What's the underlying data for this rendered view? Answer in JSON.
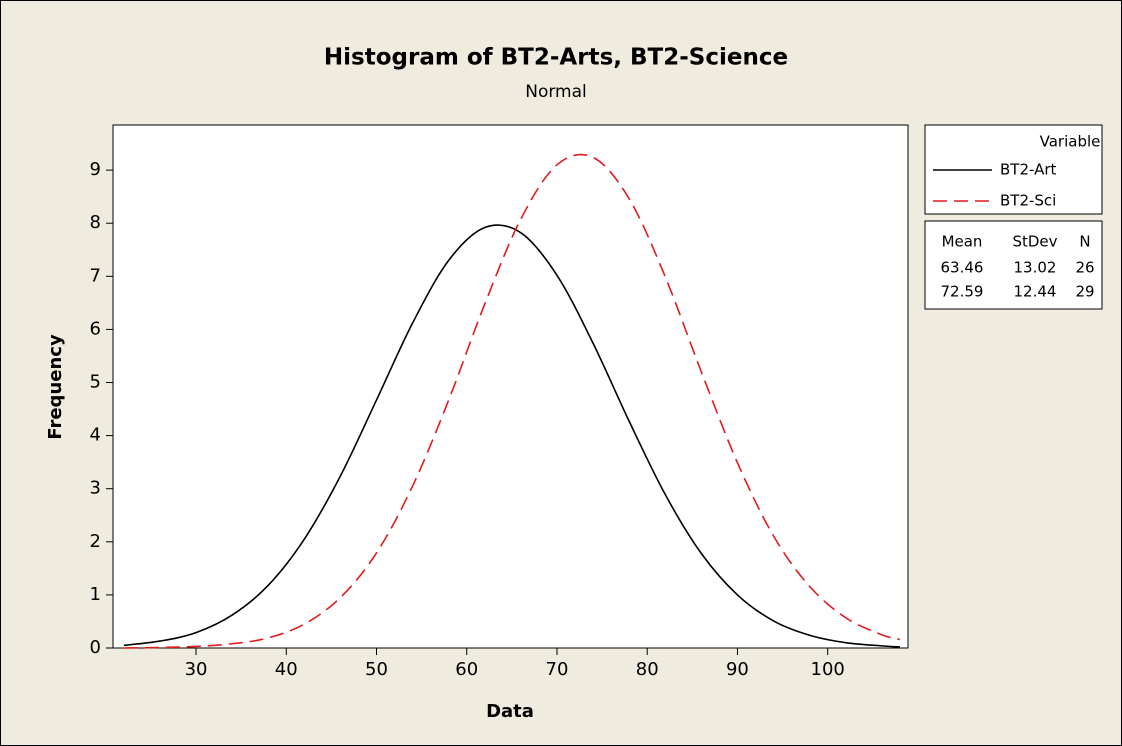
{
  "chart_data": {
    "type": "line",
    "title": "Histogram of BT2-Arts, BT2-Science",
    "subtitle": "Normal",
    "x_label": "Data",
    "y_label": "Frequency",
    "x": [
      22,
      26,
      30,
      34,
      38,
      42,
      46,
      50,
      54,
      58,
      62,
      66,
      70,
      74,
      78,
      82,
      86,
      90,
      94,
      98,
      102,
      106,
      108
    ],
    "series": [
      {
        "name": "BT2-Art",
        "color": "#000000",
        "dash": "solid",
        "values": [
          0.05,
          0.13,
          0.29,
          0.62,
          1.18,
          2.05,
          3.24,
          4.67,
          6.12,
          7.3,
          7.92,
          7.82,
          7.02,
          5.74,
          4.27,
          2.89,
          1.78,
          1.0,
          0.51,
          0.24,
          0.1,
          0.04,
          0.02
        ]
      },
      {
        "name": "BT2-Sci",
        "color": "#e41a1c",
        "dash": "dashed",
        "values": [
          0.0,
          0.01,
          0.03,
          0.08,
          0.19,
          0.45,
          0.95,
          1.79,
          3.05,
          4.67,
          6.48,
          8.08,
          9.1,
          9.24,
          8.46,
          6.99,
          5.2,
          3.49,
          2.11,
          1.16,
          0.57,
          0.25,
          0.16
        ]
      }
    ],
    "xlim": [
      20.8,
      108.9
    ],
    "xticks": [
      30,
      40,
      50,
      60,
      70,
      80,
      90,
      100
    ],
    "ylim": [
      0,
      9.85
    ],
    "yticks": [
      0,
      1,
      2,
      3,
      4,
      5,
      6,
      7,
      8,
      9
    ],
    "legend_title": "Variable",
    "legend_position": "right",
    "stats_table": {
      "columns": [
        "Mean",
        "StDev",
        "N"
      ],
      "rows": [
        [
          63.46,
          13.02,
          26
        ],
        [
          72.59,
          12.44,
          29
        ]
      ]
    }
  }
}
